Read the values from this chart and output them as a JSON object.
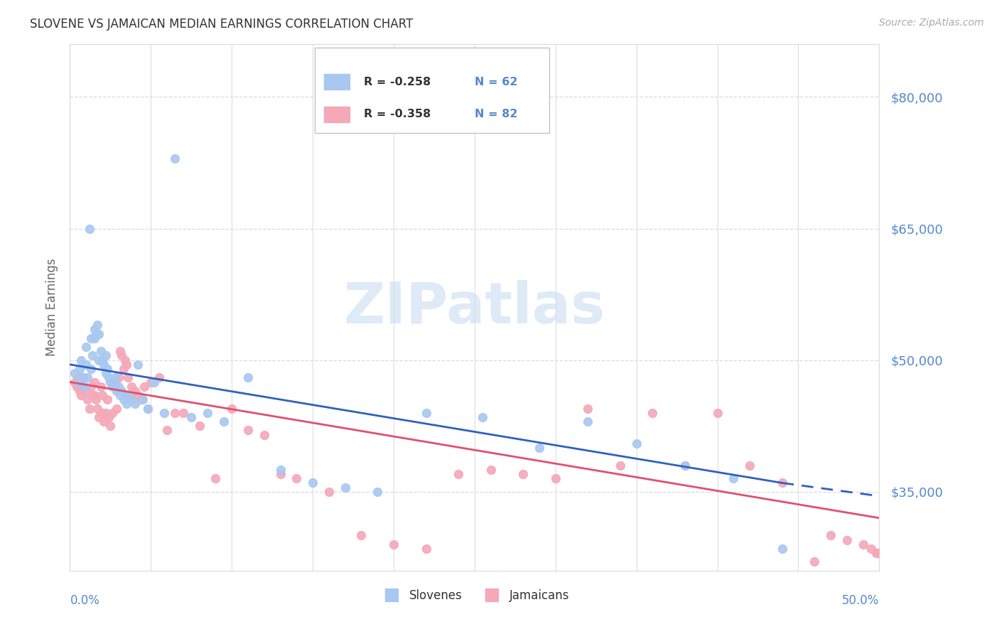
{
  "title": "SLOVENE VS JAMAICAN MEDIAN EARNINGS CORRELATION CHART",
  "source": "Source: ZipAtlas.com",
  "ylabel": "Median Earnings",
  "ytick_labels": [
    "$80,000",
    "$65,000",
    "$50,000",
    "$35,000"
  ],
  "ytick_values": [
    80000,
    65000,
    50000,
    35000
  ],
  "ylim": [
    26000,
    86000
  ],
  "xlim": [
    0.0,
    0.5
  ],
  "slovenes_color": "#a8c8f0",
  "jamaicans_color": "#f4a8b8",
  "trend_slovenes_color": "#3060c0",
  "trend_jamaicans_color": "#e05070",
  "background_color": "#ffffff",
  "grid_color": "#d8d8e8",
  "title_color": "#333333",
  "ytick_color": "#5588cc",
  "xtick_color": "#5588cc",
  "ylabel_color": "#666666",
  "watermark_color": "#c8ddf0",
  "legend_r1": "R = -0.258",
  "legend_n1": "N = 62",
  "legend_r2": "R = -0.358",
  "legend_n2": "N = 82",
  "slovenes_x": [
    0.003,
    0.005,
    0.006,
    0.007,
    0.008,
    0.009,
    0.01,
    0.01,
    0.011,
    0.012,
    0.013,
    0.013,
    0.014,
    0.015,
    0.015,
    0.016,
    0.017,
    0.018,
    0.018,
    0.019,
    0.02,
    0.021,
    0.022,
    0.022,
    0.023,
    0.024,
    0.025,
    0.026,
    0.027,
    0.028,
    0.029,
    0.03,
    0.031,
    0.032,
    0.033,
    0.034,
    0.035,
    0.036,
    0.038,
    0.04,
    0.042,
    0.045,
    0.048,
    0.052,
    0.058,
    0.065,
    0.075,
    0.085,
    0.095,
    0.11,
    0.13,
    0.15,
    0.17,
    0.19,
    0.22,
    0.255,
    0.29,
    0.32,
    0.35,
    0.38,
    0.41,
    0.44
  ],
  "slovenes_y": [
    48500,
    47500,
    49000,
    50000,
    48000,
    47000,
    49500,
    51500,
    48000,
    65000,
    52500,
    49000,
    50500,
    53500,
    52500,
    53000,
    54000,
    53000,
    50000,
    51000,
    50000,
    49500,
    50500,
    48500,
    49000,
    48000,
    47500,
    47000,
    47500,
    48000,
    46500,
    47000,
    46000,
    46500,
    45500,
    46000,
    45000,
    46000,
    45500,
    45000,
    49500,
    45500,
    44500,
    47500,
    44000,
    73000,
    43500,
    44000,
    43000,
    48000,
    37500,
    36000,
    35500,
    35000,
    44000,
    43500,
    40000,
    43000,
    40500,
    38000,
    36500,
    28500
  ],
  "jamaicans_x": [
    0.003,
    0.004,
    0.005,
    0.006,
    0.007,
    0.008,
    0.009,
    0.01,
    0.011,
    0.012,
    0.013,
    0.014,
    0.015,
    0.015,
    0.016,
    0.017,
    0.018,
    0.019,
    0.02,
    0.02,
    0.021,
    0.022,
    0.023,
    0.024,
    0.025,
    0.026,
    0.027,
    0.028,
    0.029,
    0.03,
    0.031,
    0.032,
    0.033,
    0.034,
    0.035,
    0.036,
    0.037,
    0.038,
    0.04,
    0.042,
    0.044,
    0.046,
    0.048,
    0.05,
    0.055,
    0.06,
    0.065,
    0.07,
    0.08,
    0.09,
    0.1,
    0.11,
    0.12,
    0.13,
    0.14,
    0.16,
    0.18,
    0.2,
    0.22,
    0.24,
    0.26,
    0.28,
    0.3,
    0.32,
    0.34,
    0.36,
    0.38,
    0.4,
    0.42,
    0.44,
    0.46,
    0.47,
    0.48,
    0.49,
    0.495,
    0.498,
    0.499,
    0.5,
    0.5,
    0.5,
    0.5,
    0.5
  ],
  "jamaicans_y": [
    47500,
    47000,
    48000,
    46500,
    46000,
    48000,
    47000,
    46500,
    45500,
    44500,
    47000,
    46000,
    47500,
    46000,
    45500,
    44500,
    43500,
    47000,
    46000,
    44000,
    43000,
    44000,
    45500,
    43500,
    42500,
    44000,
    47500,
    47000,
    44500,
    48000,
    51000,
    50500,
    49000,
    50000,
    49500,
    48000,
    46000,
    47000,
    46500,
    46000,
    45500,
    47000,
    44500,
    47500,
    48000,
    42000,
    44000,
    44000,
    42500,
    36500,
    44500,
    42000,
    41500,
    37000,
    36500,
    35000,
    30000,
    29000,
    28500,
    37000,
    37500,
    37000,
    36500,
    44500,
    38000,
    44000,
    38000,
    44000,
    38000,
    36000,
    27000,
    30000,
    29500,
    29000,
    28500,
    28000,
    28000,
    28000,
    28000,
    28000,
    28000,
    28000
  ]
}
